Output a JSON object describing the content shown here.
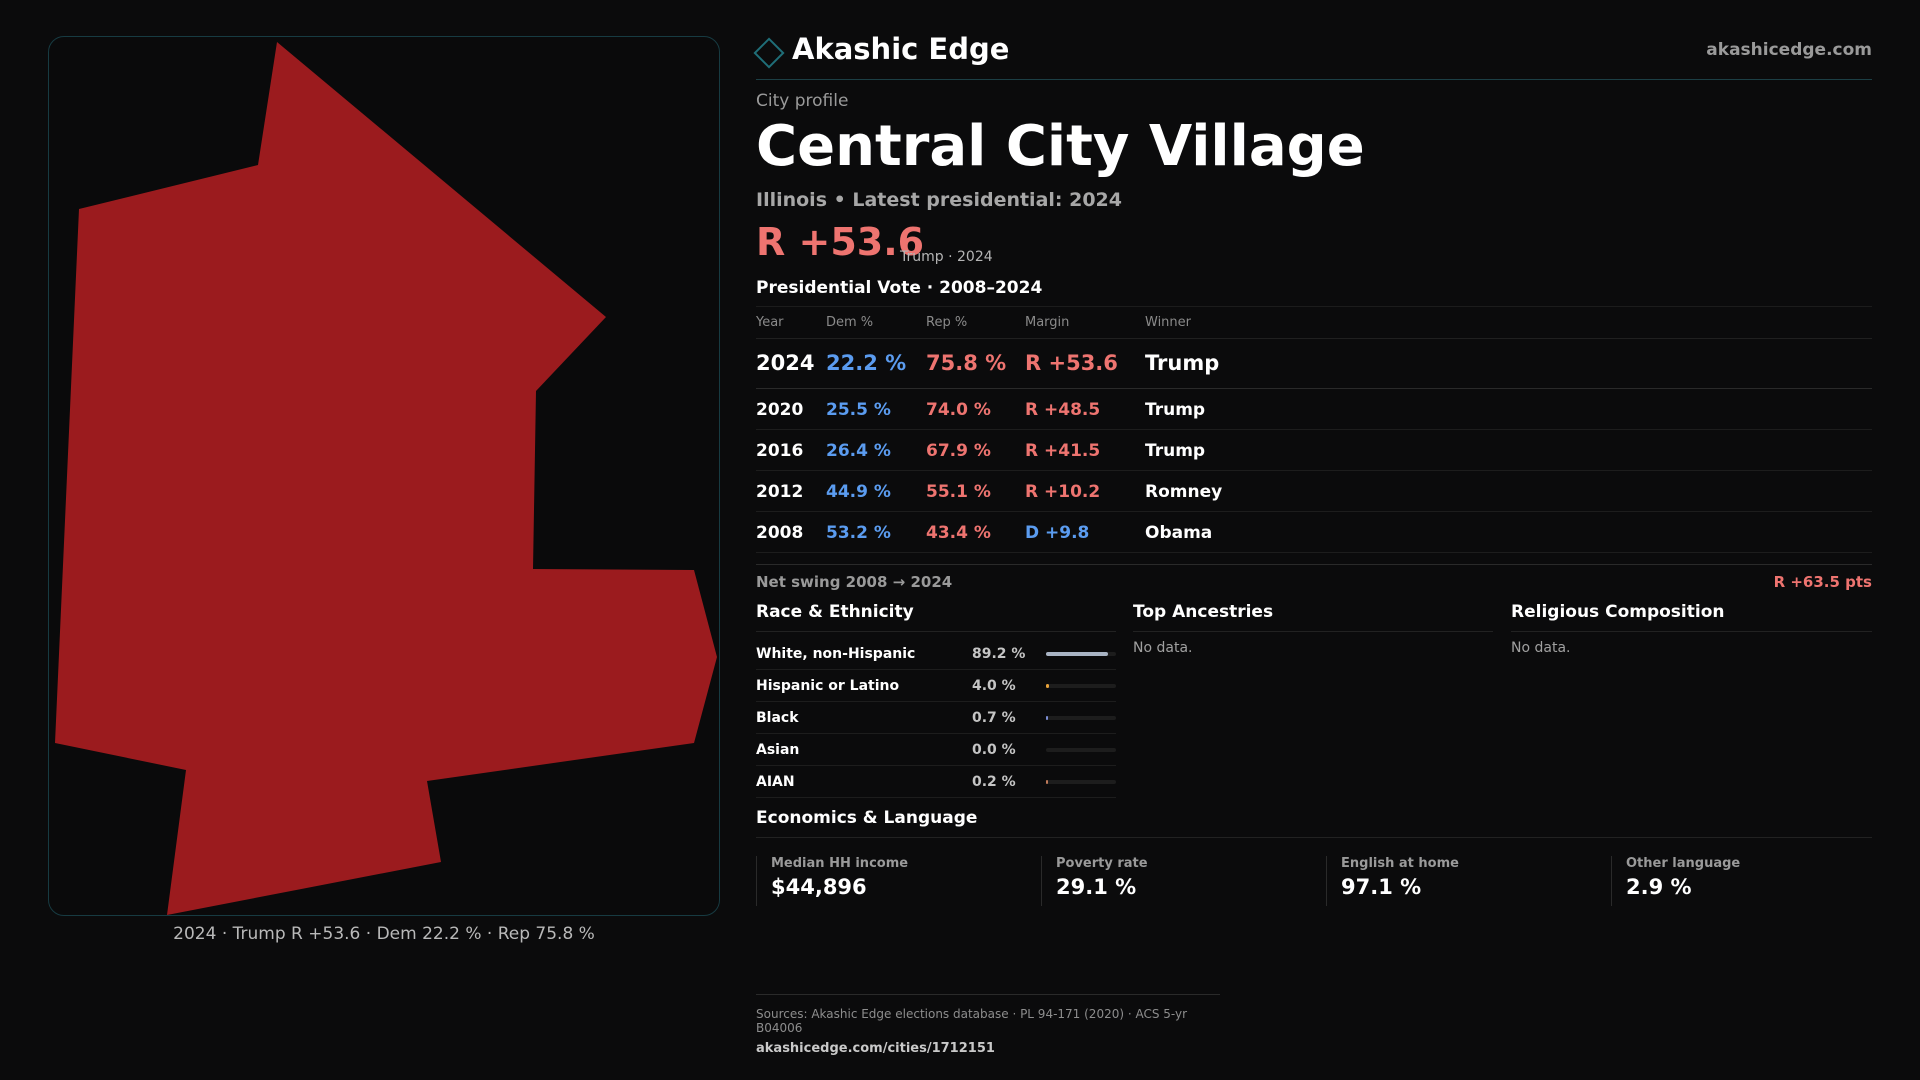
{
  "brand": {
    "name": "Akashic Edge",
    "url": "akashicedge.com",
    "logo_icon": "diamond-icon"
  },
  "header": {
    "eyebrow": "City profile",
    "title": "Central City Village",
    "subtitle": "Illinois • Latest presidential: 2024",
    "margin": "R +53.6",
    "margin_note": "Trump · 2024"
  },
  "map": {
    "caption": "2024 · Trump R +53.6 · Dem 22.2 % · Rep 75.8 %",
    "fill_color": "#9b1b1e"
  },
  "vote_table": {
    "title": "Presidential Vote · 2008–2024",
    "columns": [
      "Year",
      "Dem %",
      "Rep %",
      "Margin",
      "Winner"
    ],
    "rows": [
      {
        "year": "2024",
        "dem": "22.2 %",
        "rep": "75.8 %",
        "margin": "R +53.6",
        "winner": "Trump",
        "party": "R"
      },
      {
        "year": "2020",
        "dem": "25.5 %",
        "rep": "74.0 %",
        "margin": "R +48.5",
        "winner": "Trump",
        "party": "R"
      },
      {
        "year": "2016",
        "dem": "26.4 %",
        "rep": "67.9 %",
        "margin": "R +41.5",
        "winner": "Trump",
        "party": "R"
      },
      {
        "year": "2012",
        "dem": "44.9 %",
        "rep": "55.1 %",
        "margin": "R +10.2",
        "winner": "Romney",
        "party": "R"
      },
      {
        "year": "2008",
        "dem": "53.2 %",
        "rep": "43.4 %",
        "margin": "D +9.8",
        "winner": "Obama",
        "party": "D"
      }
    ]
  },
  "swing": {
    "label": "Net swing 2008 → 2024",
    "value": "R +63.5 pts"
  },
  "race": {
    "title": "Race & Ethnicity",
    "rows": [
      {
        "name": "White, non-Hispanic",
        "pct": "89.2 %",
        "share": 0.892,
        "color": "#a9b4c4"
      },
      {
        "name": "Hispanic or Latino",
        "pct": "4.0 %",
        "share": 0.04,
        "color": "#e8a33a"
      },
      {
        "name": "Black",
        "pct": "0.7 %",
        "share": 0.007,
        "color": "#7d8fd6"
      },
      {
        "name": "Asian",
        "pct": "0.0 %",
        "share": 0.0,
        "color": "#5fb4a8"
      },
      {
        "name": "AIAN",
        "pct": "0.2 %",
        "share": 0.002,
        "color": "#c07a5a"
      }
    ]
  },
  "ancestries": {
    "title": "Top Ancestries",
    "empty": "No data."
  },
  "religion": {
    "title": "Religious Composition",
    "empty": "No data."
  },
  "economics": {
    "title": "Economics & Language",
    "cells": [
      {
        "label": "Median HH income",
        "value": "$44,896"
      },
      {
        "label": "Poverty rate",
        "value": "29.1 %"
      },
      {
        "label": "English at home",
        "value": "97.1 %"
      },
      {
        "label": "Other language",
        "value": "2.9 %"
      }
    ]
  },
  "sources": {
    "line": "Sources: Akashic Edge elections database · PL 94-171 (2020) · ACS 5-yr B04006",
    "url": "akashicedge.com/cities/1712151"
  }
}
